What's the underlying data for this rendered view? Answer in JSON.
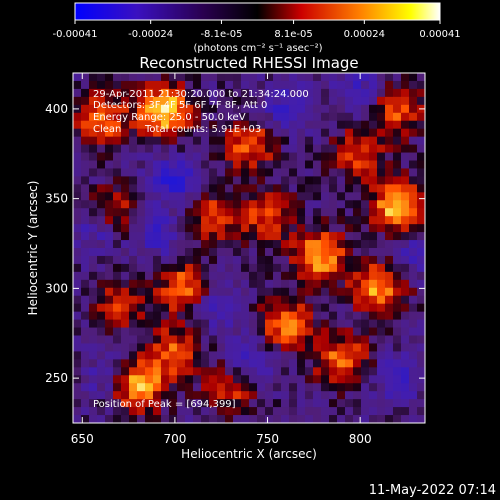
{
  "chart_data": {
    "type": "heatmap",
    "title": "Reconstructed RHESSI Image",
    "xlabel": "Heliocentric X (arcsec)",
    "ylabel": "Heliocentric Y (arcsec)",
    "xlim": [
      645,
      835
    ],
    "ylim": [
      225,
      420
    ],
    "x_ticks": [
      650,
      700,
      750,
      800
    ],
    "y_ticks": [
      250,
      300,
      350,
      400
    ],
    "colorbar": {
      "ticks": [
        "-0.00041",
        "-0.00024",
        "-8.1e-05",
        "8.1e-05",
        "0.00024",
        "0.00041"
      ],
      "tick_values": [
        -0.00041,
        -0.00024,
        -8.1e-05,
        8.1e-05,
        0.00024,
        0.00041
      ],
      "range": [
        -0.00041,
        0.00041
      ],
      "units": "(photons cm⁻² s⁻¹ asec⁻²)",
      "colors": [
        "#0000ff",
        "#4b0082",
        "#000000",
        "#cc0000",
        "#ff7f00",
        "#ffff00",
        "#ffffff"
      ]
    },
    "annotations": {
      "time": "29-Apr-2011 21:30:20.000 to 21:34:24.000",
      "detectors": "Detectors: 3F 4F 5F 6F 7F 8F, Att 0",
      "energy": "Energy Range: 25.0 - 50.0 keV",
      "method": "Clean",
      "counts": "Total counts: 5.91E+03",
      "peak": "Position of Peak = [694,399]"
    },
    "footer_date": "11-May-2022 07:14",
    "hotspots": [
      {
        "x": 694,
        "y": 399,
        "v": 1.0
      },
      {
        "x": 680,
        "y": 246,
        "v": 0.95
      },
      {
        "x": 820,
        "y": 345,
        "v": 0.95
      },
      {
        "x": 778,
        "y": 318,
        "v": 0.85
      },
      {
        "x": 665,
        "y": 340,
        "v": 0.8
      },
      {
        "x": 810,
        "y": 300,
        "v": 0.8
      },
      {
        "x": 760,
        "y": 280,
        "v": 0.7
      },
      {
        "x": 705,
        "y": 300,
        "v": 0.7
      },
      {
        "x": 740,
        "y": 380,
        "v": 0.65
      },
      {
        "x": 790,
        "y": 260,
        "v": 0.7
      },
      {
        "x": 660,
        "y": 395,
        "v": 0.7
      },
      {
        "x": 720,
        "y": 340,
        "v": 0.55
      },
      {
        "x": 820,
        "y": 400,
        "v": 0.6
      },
      {
        "x": 700,
        "y": 265,
        "v": 0.6
      },
      {
        "x": 750,
        "y": 340,
        "v": 0.55
      },
      {
        "x": 670,
        "y": 290,
        "v": 0.5
      },
      {
        "x": 800,
        "y": 375,
        "v": 0.55
      },
      {
        "x": 730,
        "y": 245,
        "v": 0.5
      }
    ],
    "coldspots": [
      {
        "x": 660,
        "y": 335,
        "v": 1.0
      },
      {
        "x": 700,
        "y": 360,
        "v": 0.8
      },
      {
        "x": 690,
        "y": 330,
        "v": 0.6
      },
      {
        "x": 740,
        "y": 260,
        "v": 0.6
      },
      {
        "x": 760,
        "y": 400,
        "v": 0.6
      },
      {
        "x": 800,
        "y": 410,
        "v": 0.5
      },
      {
        "x": 830,
        "y": 320,
        "v": 0.6
      },
      {
        "x": 820,
        "y": 250,
        "v": 0.55
      },
      {
        "x": 720,
        "y": 290,
        "v": 0.5
      },
      {
        "x": 665,
        "y": 250,
        "v": 0.5
      }
    ]
  }
}
